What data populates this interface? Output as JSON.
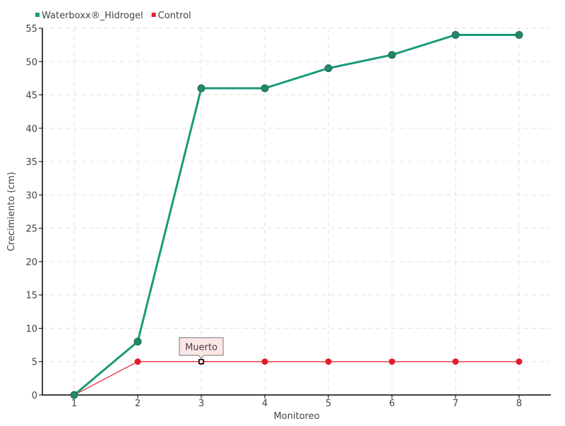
{
  "chart_data": {
    "type": "line",
    "title": "",
    "xlabel": "Monitoreo",
    "ylabel": "Crecimiento (cm)",
    "x": [
      1,
      2,
      3,
      4,
      5,
      6,
      7,
      8
    ],
    "xlim": [
      0.5,
      8.5
    ],
    "ylim": [
      0,
      55
    ],
    "yticks": [
      0,
      5,
      10,
      15,
      20,
      25,
      30,
      35,
      40,
      45,
      50,
      55
    ],
    "grid": true,
    "legend_placement": "top-left",
    "series": [
      {
        "name": "Waterboxx®_Hidrogel",
        "color": "#1a9a7a",
        "marker_color": "#23876a",
        "values": [
          0,
          8,
          46,
          46,
          49,
          51,
          54,
          54
        ]
      },
      {
        "name": "Control",
        "color": "#e8202a",
        "marker_color": "#e01c28",
        "values": [
          0,
          5,
          5,
          5,
          5,
          5,
          5,
          5
        ]
      }
    ],
    "annotations": [
      {
        "series": 1,
        "x": 3,
        "y": 5,
        "text": "Muerto"
      }
    ]
  }
}
